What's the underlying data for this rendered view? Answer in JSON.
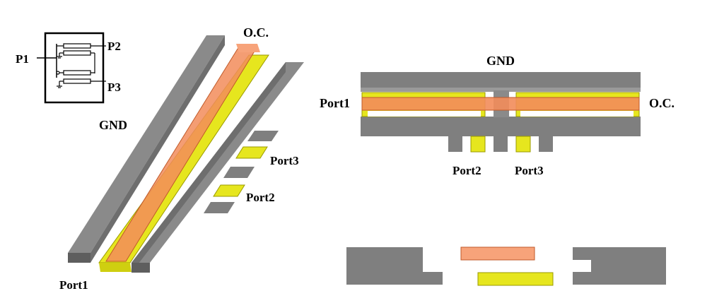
{
  "colors": {
    "gnd": "#7f7f7f",
    "gnd_top": "#9a9a9a",
    "gnd_dark": "#5e5e5e",
    "strip_top": "#f28c5a",
    "strip_top_light": "#f7b08c",
    "strip_bottom": "#e6e61e",
    "strip_bottom_dark": "#b8b800",
    "line": "#000000"
  },
  "schematic": {
    "labels": {
      "p1": "P1",
      "p2": "P2",
      "p3": "P3"
    }
  },
  "view_3d": {
    "labels": {
      "oc": "O.C.",
      "gnd": "GND",
      "port1": "Port1",
      "port2": "Port2",
      "port3": "Port3"
    }
  },
  "top_view": {
    "labels": {
      "gnd": "GND",
      "port1": "Port1",
      "oc": "O.C.",
      "port2": "Port2",
      "port3": "Port3"
    }
  },
  "cross_section": {}
}
